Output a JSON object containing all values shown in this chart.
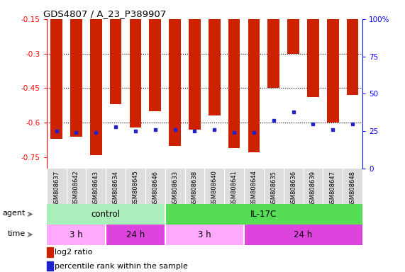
{
  "title": "GDS4807 / A_23_P389907",
  "samples": [
    "GSM808637",
    "GSM808642",
    "GSM808643",
    "GSM808634",
    "GSM808645",
    "GSM808646",
    "GSM808633",
    "GSM808638",
    "GSM808640",
    "GSM808641",
    "GSM808644",
    "GSM808635",
    "GSM808636",
    "GSM808639",
    "GSM808647",
    "GSM808648"
  ],
  "log2_ratio": [
    -0.67,
    -0.66,
    -0.74,
    -0.52,
    -0.62,
    -0.55,
    -0.7,
    -0.63,
    -0.57,
    -0.71,
    -0.73,
    -0.45,
    -0.3,
    -0.49,
    -0.6,
    -0.48
  ],
  "percentile": [
    25,
    24,
    24,
    28,
    25,
    26,
    26,
    25,
    26,
    24,
    24,
    32,
    38,
    30,
    26,
    30
  ],
  "ylim_left": [
    -0.8,
    -0.15
  ],
  "ylim_right": [
    0,
    100
  ],
  "yticks_left": [
    -0.75,
    -0.6,
    -0.45,
    -0.3,
    -0.15
  ],
  "yticks_right": [
    0,
    25,
    50,
    75,
    100
  ],
  "bar_color": "#cc2200",
  "dot_color": "#2222cc",
  "agent_bar_color_light_green": "#aaeebb",
  "agent_bar_color_green": "#55dd55",
  "time_3h_color": "#ffaaff",
  "time_24h_color": "#dd44dd",
  "legend_log2_color": "#cc2200",
  "legend_pct_color": "#2222cc",
  "dotted_line_yticks": [
    -0.6,
    -0.45,
    -0.3
  ],
  "ctrl_count": 6,
  "time_blocks": [
    [
      0,
      3,
      "3 h",
      "#ffaaff"
    ],
    [
      3,
      6,
      "24 h",
      "#dd44dd"
    ],
    [
      6,
      10,
      "3 h",
      "#ffaaff"
    ],
    [
      10,
      16,
      "24 h",
      "#dd44dd"
    ]
  ]
}
